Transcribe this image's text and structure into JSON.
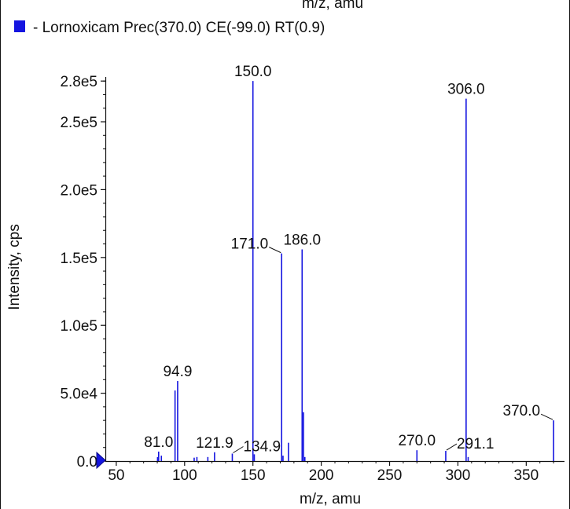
{
  "legend": {
    "label": "- Lornoxicam Prec(370.0) CE(-99.0) RT(0.9)",
    "marker_color": "#1515e0"
  },
  "top_cut_title": "m/z, amu",
  "colors": {
    "spectrum": "#1515e0",
    "axis": "#111111",
    "marker": "#1515e0"
  },
  "chart_data": {
    "type": "bar",
    "xlabel": "m/z, amu",
    "ylabel": "Intensity, cps",
    "xlim": [
      42,
      378
    ],
    "ylim": [
      0,
      283000
    ],
    "x_ticks": [
      50,
      100,
      150,
      200,
      250,
      300,
      350
    ],
    "y_ticks": [
      {
        "value": 0,
        "label": "0.0"
      },
      {
        "value": 50000,
        "label": "5.0e4"
      },
      {
        "value": 100000,
        "label": "1.0e5"
      },
      {
        "value": 150000,
        "label": "1.5e5"
      },
      {
        "value": 200000,
        "label": "2.0e5"
      },
      {
        "value": 250000,
        "label": "2.5e5"
      },
      {
        "value": 280000,
        "label": "2.8e5"
      }
    ],
    "peaks": [
      {
        "x": 80.2,
        "y": 3000
      },
      {
        "x": 81.0,
        "y": 7000
      },
      {
        "x": 83.0,
        "y": 4000
      },
      {
        "x": 93.0,
        "y": 52000
      },
      {
        "x": 94.9,
        "y": 59000
      },
      {
        "x": 107.0,
        "y": 2500
      },
      {
        "x": 109.0,
        "y": 3000
      },
      {
        "x": 117.0,
        "y": 3000
      },
      {
        "x": 121.9,
        "y": 6500
      },
      {
        "x": 134.9,
        "y": 5500
      },
      {
        "x": 150.0,
        "y": 280000
      },
      {
        "x": 151.0,
        "y": 5000
      },
      {
        "x": 171.0,
        "y": 153000
      },
      {
        "x": 172.0,
        "y": 4000
      },
      {
        "x": 176.0,
        "y": 13500
      },
      {
        "x": 186.0,
        "y": 156000
      },
      {
        "x": 187.0,
        "y": 36000
      },
      {
        "x": 188.0,
        "y": 3000
      },
      {
        "x": 270.0,
        "y": 8000
      },
      {
        "x": 291.1,
        "y": 7500
      },
      {
        "x": 306.0,
        "y": 267000
      },
      {
        "x": 307.5,
        "y": 3000
      },
      {
        "x": 370.0,
        "y": 30000
      }
    ],
    "annotations": [
      {
        "x": 81.0,
        "y": 7000,
        "label": "81.0",
        "callout": false
      },
      {
        "x": 94.9,
        "y": 59000,
        "label": "94.9",
        "callout": false
      },
      {
        "x": 121.9,
        "y": 6500,
        "label": "121.9",
        "callout": false
      },
      {
        "x": 134.9,
        "y": 5500,
        "label": "134.9",
        "callout": true,
        "side": "right"
      },
      {
        "x": 150.0,
        "y": 280000,
        "label": "150.0",
        "callout": false
      },
      {
        "x": 171.0,
        "y": 153000,
        "label": "171.0",
        "callout": true,
        "side": "left"
      },
      {
        "x": 186.0,
        "y": 156000,
        "label": "186.0",
        "callout": false
      },
      {
        "x": 270.0,
        "y": 8000,
        "label": "270.0",
        "callout": false
      },
      {
        "x": 291.1,
        "y": 7500,
        "label": "291.1",
        "callout": true,
        "side": "right"
      },
      {
        "x": 306.0,
        "y": 267000,
        "label": "306.0",
        "callout": false
      },
      {
        "x": 370.0,
        "y": 30000,
        "label": "370.0",
        "callout": true,
        "side": "left"
      }
    ]
  }
}
